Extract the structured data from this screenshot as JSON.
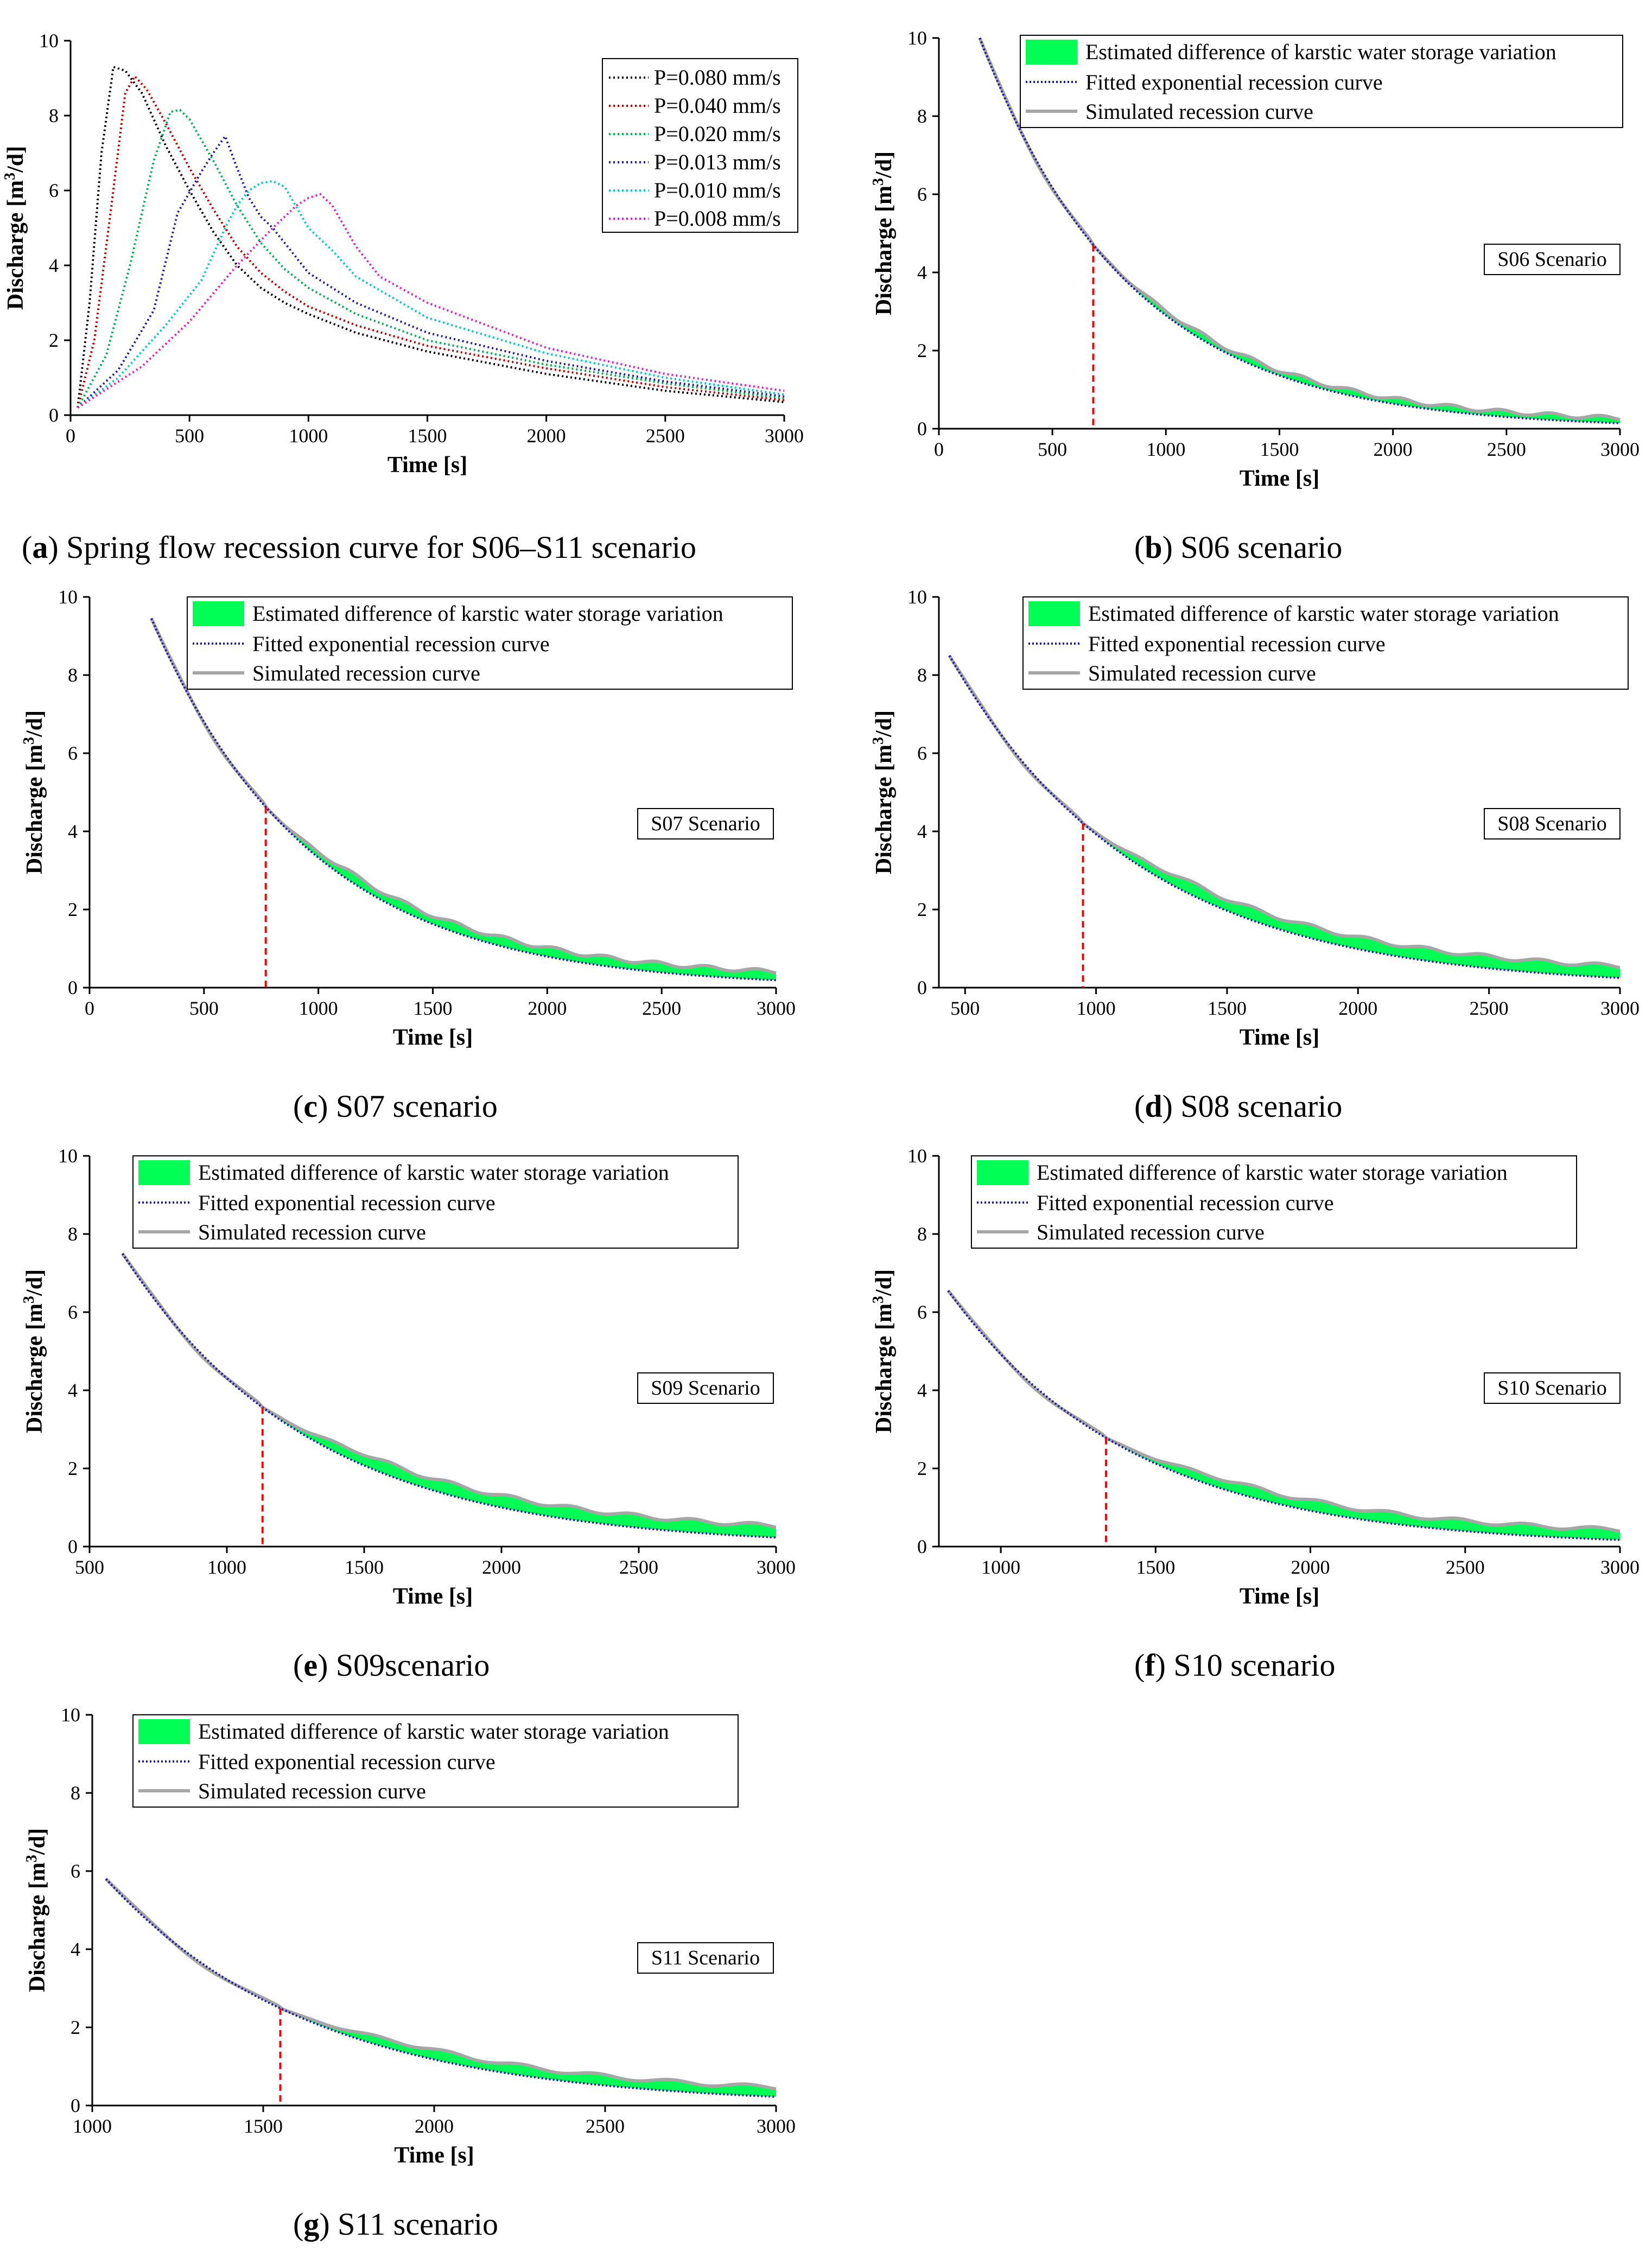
{
  "figure": {
    "captions": [
      {
        "letter": "a",
        "text": " Spring flow recession curve for S06–S11 scenario"
      },
      {
        "letter": "b",
        "text": " S06 scenario"
      },
      {
        "letter": "c",
        "text": " S07 scenario"
      },
      {
        "letter": "d",
        "text": " S08 scenario"
      },
      {
        "letter": "e",
        "text": " S09scenario"
      },
      {
        "letter": "f",
        "text": " S10 scenario"
      },
      {
        "letter": "g",
        "text": " S11 scenario"
      }
    ]
  },
  "chart_data": [
    {
      "id": "a",
      "type": "line",
      "xlabel": "Time [s]",
      "ylabel_main": "Discharge [m",
      "ylabel_sup": "3",
      "ylabel_end": "/d]",
      "xlim": [
        0,
        3000
      ],
      "ylim": [
        0,
        10
      ],
      "xticks": [
        "0",
        "500",
        "1000",
        "1500",
        "2000",
        "2500",
        "3000"
      ],
      "yticks": [
        "0",
        "2",
        "4",
        "6",
        "8",
        "10"
      ],
      "series": [
        {
          "name": "P=0.080 mm/s",
          "color": "#000000",
          "x": [
            30,
            80,
            130,
            180,
            230,
            300,
            400,
            500,
            600,
            700,
            800,
            900,
            1000,
            1200,
            1500,
            2000,
            2500,
            3000
          ],
          "y": [
            0.2,
            3.0,
            7.0,
            9.3,
            9.2,
            8.6,
            7.2,
            6.0,
            4.9,
            4.0,
            3.4,
            3.0,
            2.7,
            2.2,
            1.7,
            1.1,
            0.65,
            0.35
          ]
        },
        {
          "name": "P=0.040 mm/s",
          "color": "#c00000",
          "x": [
            30,
            100,
            170,
            230,
            270,
            320,
            400,
            500,
            600,
            700,
            800,
            900,
            1000,
            1200,
            1500,
            2000,
            2500,
            3000
          ],
          "y": [
            0.2,
            2.0,
            5.5,
            8.6,
            9.05,
            8.7,
            7.8,
            6.6,
            5.5,
            4.5,
            3.8,
            3.3,
            2.9,
            2.4,
            1.85,
            1.25,
            0.75,
            0.4
          ]
        },
        {
          "name": "P=0.020 mm/s",
          "color": "#00b050",
          "x": [
            30,
            150,
            250,
            350,
            420,
            460,
            500,
            600,
            700,
            800,
            900,
            1000,
            1200,
            1500,
            2000,
            2500,
            3000
          ],
          "y": [
            0.2,
            1.6,
            4.0,
            6.8,
            8.1,
            8.15,
            7.9,
            6.8,
            5.6,
            4.6,
            3.9,
            3.4,
            2.7,
            2.0,
            1.35,
            0.85,
            0.45
          ]
        },
        {
          "name": "P=0.013 mm/s",
          "color": "#1f1f9f",
          "x": [
            30,
            200,
            350,
            450,
            550,
            600,
            650,
            700,
            750,
            800,
            850,
            900,
            1000,
            1200,
            1500,
            2000,
            2500,
            3000
          ],
          "y": [
            0.2,
            1.2,
            2.8,
            5.4,
            6.5,
            7.0,
            7.45,
            6.6,
            5.8,
            5.3,
            5.0,
            4.6,
            3.8,
            3.0,
            2.2,
            1.45,
            0.9,
            0.5
          ]
        },
        {
          "name": "P=0.010 mm/s",
          "color": "#00c8c8",
          "x": [
            30,
            200,
            400,
            550,
            650,
            700,
            750,
            800,
            850,
            900,
            1000,
            1100,
            1200,
            1500,
            2000,
            2500,
            3000
          ],
          "y": [
            0.2,
            1.0,
            2.4,
            3.6,
            5.0,
            5.6,
            6.0,
            6.2,
            6.25,
            6.1,
            5.0,
            4.4,
            3.7,
            2.6,
            1.65,
            1.0,
            0.55
          ]
        },
        {
          "name": "P=0.008 mm/s",
          "color": "#e020c0",
          "x": [
            30,
            300,
            500,
            700,
            850,
            950,
            1000,
            1050,
            1100,
            1200,
            1300,
            1500,
            2000,
            2500,
            3000
          ],
          "y": [
            0.2,
            1.3,
            2.5,
            4.0,
            5.0,
            5.6,
            5.8,
            5.9,
            5.6,
            4.5,
            3.7,
            3.0,
            1.8,
            1.1,
            0.65
          ]
        }
      ]
    },
    {
      "id": "b",
      "type": "line",
      "scenario": "S06 Scenario",
      "xlabel": "Time [s]",
      "ylabel_main": "Discharge [m",
      "ylabel_sup": "3",
      "ylabel_end": "/d]",
      "xlim": [
        0,
        3000
      ],
      "ylim": [
        0,
        10
      ],
      "xticks": [
        "0",
        "500",
        "1000",
        "1500",
        "2000",
        "2500",
        "3000"
      ],
      "yticks": [
        "0",
        "2",
        "4",
        "6",
        "8",
        "10"
      ],
      "legend": [
        "Estimated difference of karstic water storage variation",
        "Fitted exponential recession curve",
        "Simulated recession curve"
      ],
      "fitted": {
        "x0": 180,
        "q0": 10.0,
        "k": 0.00151,
        "x1": 3000
      },
      "sim_start_x": 150,
      "sim_offset": 0.13,
      "cut_x": 680
    },
    {
      "id": "c",
      "type": "line",
      "scenario": "S07 Scenario",
      "xlabel": "Time [s]",
      "ylabel_main": "Discharge [m",
      "ylabel_sup": "3",
      "ylabel_end": "/d]",
      "xlim": [
        0,
        3000
      ],
      "ylim": [
        0,
        10
      ],
      "xticks": [
        "0",
        "500",
        "1000",
        "1500",
        "2000",
        "2500",
        "3000"
      ],
      "yticks": [
        "0",
        "2",
        "4",
        "6",
        "8",
        "10"
      ],
      "legend": [
        "Estimated difference of karstic water storage variation",
        "Fitted exponential recession curve",
        "Simulated recession curve"
      ],
      "fitted": {
        "x0": 270,
        "q0": 9.45,
        "k": 0.00143,
        "x1": 3000
      },
      "sim_start_x": 260,
      "sim_offset": 0.22,
      "cut_x": 770
    },
    {
      "id": "d",
      "type": "line",
      "scenario": "S08 Scenario",
      "xlabel": "Time [s]",
      "ylabel_main": "Discharge [m",
      "ylabel_sup": "3",
      "ylabel_end": "/d]",
      "xlim": [
        400,
        3000
      ],
      "ylim": [
        0,
        10
      ],
      "xticks": [
        "500",
        "1000",
        "1500",
        "2000",
        "2500",
        "3000"
      ],
      "xtick_vals": [
        500,
        1000,
        1500,
        2000,
        2500,
        3000
      ],
      "yticks": [
        "0",
        "2",
        "4",
        "6",
        "8",
        "10"
      ],
      "legend": [
        "Estimated difference of karstic water storage variation",
        "Fitted exponential recession curve",
        "Simulated recession curve"
      ],
      "fitted": {
        "x0": 440,
        "q0": 8.5,
        "k": 0.00138,
        "x1": 3000
      },
      "sim_start_x": 440,
      "sim_offset": 0.3,
      "cut_x": 950
    },
    {
      "id": "e",
      "type": "line",
      "scenario": "S09 Scenario",
      "xlabel": "Time [s]",
      "ylabel_main": "Discharge [m",
      "ylabel_sup": "3",
      "ylabel_end": "/d]",
      "xlim": [
        500,
        3000
      ],
      "ylim": [
        0,
        10
      ],
      "xticks": [
        "500",
        "1000",
        "1500",
        "2000",
        "2500",
        "3000"
      ],
      "xtick_vals": [
        500,
        1000,
        1500,
        2000,
        2500,
        3000
      ],
      "yticks": [
        "0",
        "2",
        "4",
        "6",
        "8",
        "10"
      ],
      "legend": [
        "Estimated difference of karstic water storage variation",
        "Fitted exponential recession curve",
        "Simulated recession curve"
      ],
      "fitted": {
        "x0": 620,
        "q0": 7.5,
        "k": 0.00146,
        "x1": 3000
      },
      "sim_start_x": 620,
      "sim_offset": 0.3,
      "cut_x": 1130
    },
    {
      "id": "f",
      "type": "line",
      "scenario": "S10 Scenario",
      "xlabel": "Time [s]",
      "ylabel_main": "Discharge [m",
      "ylabel_sup": "3",
      "ylabel_end": "/d]",
      "xlim": [
        800,
        3000
      ],
      "ylim": [
        0,
        10
      ],
      "xticks": [
        "1000",
        "1500",
        "2000",
        "2500",
        "3000"
      ],
      "xtick_vals": [
        1000,
        1500,
        2000,
        2500,
        3000
      ],
      "yticks": [
        "0",
        "2",
        "4",
        "6",
        "8",
        "10"
      ],
      "legend": [
        "Estimated difference of karstic water storage variation",
        "Fitted exponential recession curve",
        "Simulated recession curve"
      ],
      "fitted": {
        "x0": 830,
        "q0": 6.55,
        "k": 0.00168,
        "x1": 3000
      },
      "sim_start_x": 830,
      "sim_offset": 0.26,
      "cut_x": 1340
    },
    {
      "id": "g",
      "type": "line",
      "scenario": "S11 Scenario",
      "xlabel": "Time [s]",
      "ylabel_main": "Discharge [m",
      "ylabel_sup": "3",
      "ylabel_end": "/d]",
      "xlim": [
        1000,
        3000
      ],
      "ylim": [
        0,
        10
      ],
      "xticks": [
        "1000",
        "1500",
        "2000",
        "2500",
        "3000"
      ],
      "xtick_vals": [
        1000,
        1500,
        2000,
        2500,
        3000
      ],
      "yticks": [
        "0",
        "2",
        "4",
        "6",
        "8",
        "10"
      ],
      "legend": [
        "Estimated difference of karstic water storage variation",
        "Fitted exponential recession curve",
        "Simulated recession curve"
      ],
      "fitted": {
        "x0": 1040,
        "q0": 5.8,
        "k": 0.00166,
        "x1": 3000
      },
      "sim_start_x": 1040,
      "sim_offset": 0.24,
      "cut_x": 1550
    }
  ]
}
